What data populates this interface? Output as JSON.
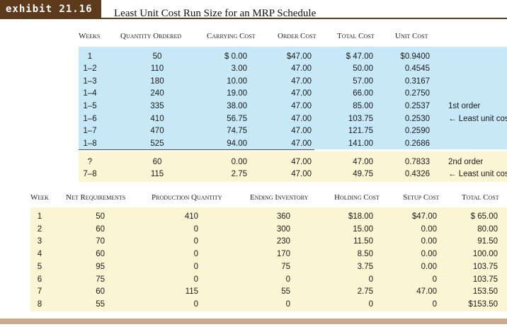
{
  "exhibit": {
    "label": "exhibit 21.16",
    "title": "Least Unit Cost Run Size for an MRP Schedule"
  },
  "table1": {
    "headers": [
      "Weeks",
      "Quantity Ordered",
      "Carrying Cost",
      "Order Cost",
      "Total Cost",
      "Unit Cost"
    ],
    "rows": [
      [
        "1",
        "50",
        "$ 0.00",
        "$47.00",
        "$ 47.00",
        "$0.9400",
        ""
      ],
      [
        "1–2",
        "110",
        "3.00",
        "47.00",
        "50.00",
        "0.4545",
        ""
      ],
      [
        "1–3",
        "180",
        "10.00",
        "47.00",
        "57.00",
        "0.3167",
        ""
      ],
      [
        "1–4",
        "240",
        "19.00",
        "47.00",
        "66.00",
        "0.2750",
        ""
      ],
      [
        "1–5",
        "335",
        "38.00",
        "47.00",
        "85.00",
        "0.2537",
        "1st order"
      ],
      [
        "1–6",
        "410",
        "56.75",
        "47.00",
        "103.75",
        "0.2530",
        "← Least unit cost"
      ],
      [
        "1–7",
        "470",
        "74.75",
        "47.00",
        "121.75",
        "0.2590",
        ""
      ],
      [
        "1–8",
        "525",
        "94.00",
        "47.00",
        "141.00",
        "0.2686",
        ""
      ],
      [
        "?",
        "60",
        "0.00",
        "47.00",
        "47.00",
        "0.7833",
        "2nd order"
      ],
      [
        "7–8",
        "115",
        "2.75",
        "47.00",
        "49.75",
        "0.4326",
        "← Least unit cost"
      ]
    ]
  },
  "table2": {
    "headers": [
      "Week",
      "Net Requirements",
      "Production Quantity",
      "Ending Inventory",
      "Holding Cost",
      "Setup Cost",
      "Total Cost"
    ],
    "rows": [
      [
        "1",
        "50",
        "410",
        "360",
        "$18.00",
        "$47.00",
        "$ 65.00"
      ],
      [
        "2",
        "60",
        "0",
        "300",
        "15.00",
        "0.00",
        "80.00"
      ],
      [
        "3",
        "70",
        "0",
        "230",
        "11.50",
        "0.00",
        "91.50"
      ],
      [
        "4",
        "60",
        "0",
        "170",
        "8.50",
        "0.00",
        "100.00"
      ],
      [
        "5",
        "95",
        "0",
        "75",
        "3.75",
        "0.00",
        "103.75"
      ],
      [
        "6",
        "75",
        "0",
        "0",
        "0",
        "0",
        "103.75"
      ],
      [
        "7",
        "60",
        "115",
        "55",
        "2.75",
        "47.00",
        "153.50"
      ],
      [
        "8",
        "55",
        "0",
        "0",
        "0",
        "0",
        "$153.50"
      ]
    ]
  }
}
